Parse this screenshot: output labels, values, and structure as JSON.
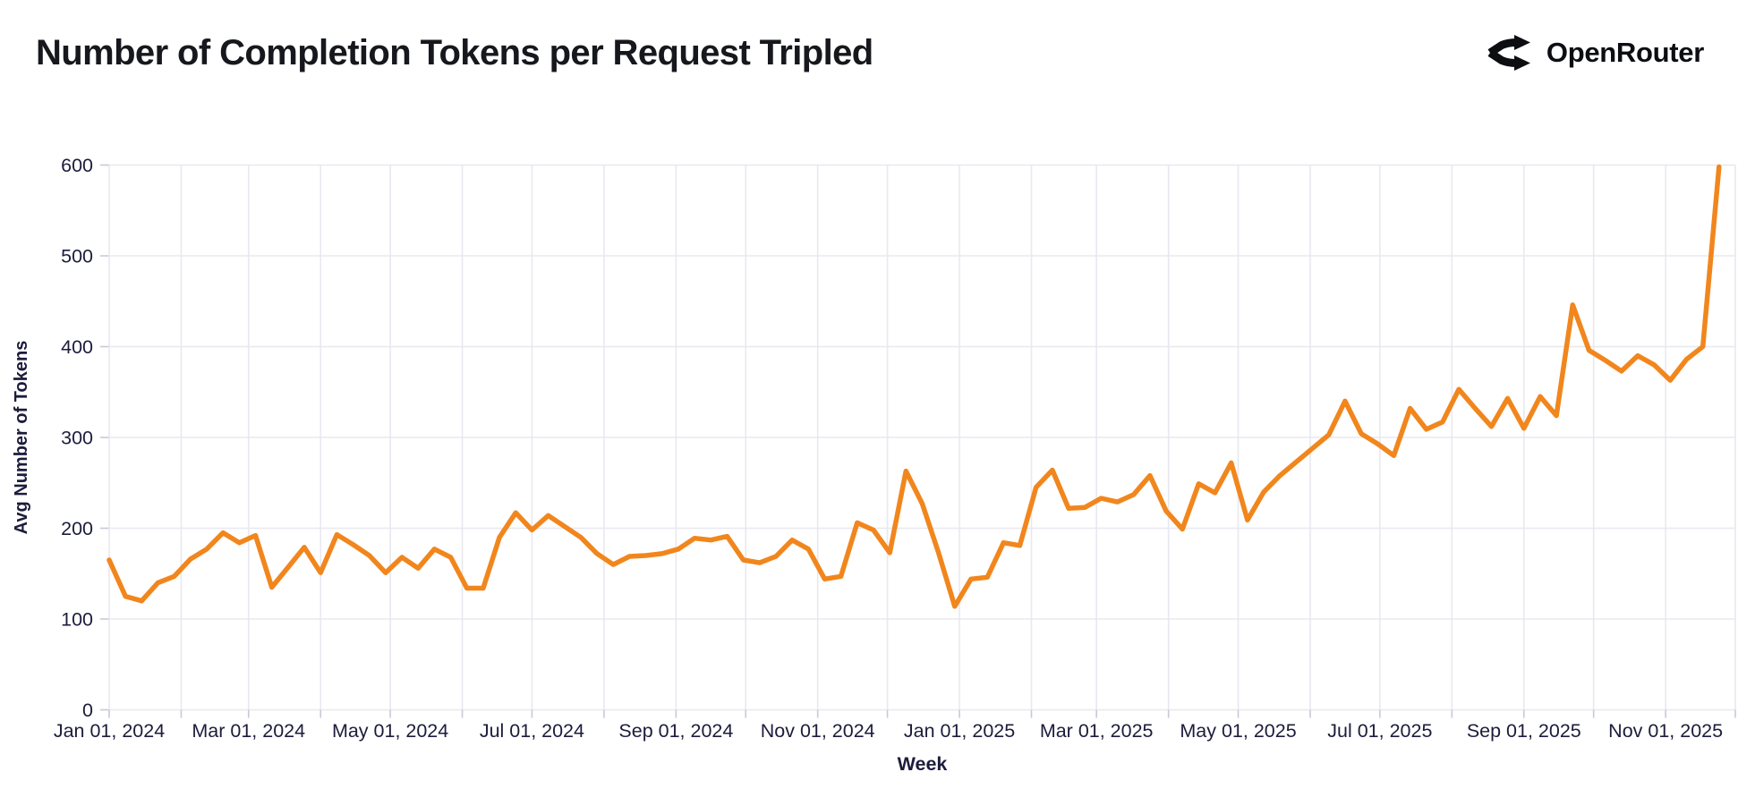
{
  "header": {
    "logo_text": "OpenRouter"
  },
  "colors": {
    "background": "#ffffff",
    "line": "#F1861D",
    "grid": "#E8E8F0",
    "tick": "#C9C9D6",
    "label": "#1C1C3C",
    "title": "#16181D"
  },
  "chart_data": {
    "type": "line",
    "title": "Number of Completion Tokens per Request Tripled",
    "xlabel": "Week",
    "ylabel": "Avg Number of Tokens",
    "x_interval": "weekly",
    "x_start_label": "Jan 01, 2024",
    "x_end_label": "Nov 01, 2025",
    "ylim": [
      0,
      600
    ],
    "grid": "on",
    "legend": "none",
    "y_ticks": [
      0,
      100,
      200,
      300,
      400,
      500,
      600
    ],
    "x_ticks": [
      {
        "label": "Jan 01, 2024",
        "day": 0
      },
      {
        "label": "Mar 01, 2024",
        "day": 60
      },
      {
        "label": "May 01, 2024",
        "day": 121
      },
      {
        "label": "Jul 01, 2024",
        "day": 182
      },
      {
        "label": "Sep 01, 2024",
        "day": 244
      },
      {
        "label": "Nov 01, 2024",
        "day": 305
      },
      {
        "label": "Jan 01, 2025",
        "day": 366
      },
      {
        "label": "Mar 01, 2025",
        "day": 425
      },
      {
        "label": "May 01, 2025",
        "day": 486
      },
      {
        "label": "Jul 01, 2025",
        "day": 547
      },
      {
        "label": "Sep 01, 2025",
        "day": 609
      },
      {
        "label": "Nov 01, 2025",
        "day": 670
      }
    ],
    "x_gridline_days": [
      0,
      31,
      60,
      91,
      121,
      152,
      182,
      213,
      244,
      274,
      305,
      335,
      366,
      397,
      425,
      456,
      486,
      517,
      547,
      578,
      609,
      639,
      670,
      700
    ],
    "x_domain_days": [
      0,
      700
    ],
    "values_are_weekly_avg_tokens": true,
    "values": [
      165,
      125,
      120,
      140,
      147,
      166,
      177,
      195,
      184,
      192,
      135,
      157,
      179,
      151,
      193,
      182,
      170,
      151,
      168,
      156,
      177,
      168,
      134,
      134,
      190,
      217,
      198,
      214,
      202,
      190,
      172,
      160,
      169,
      170,
      172,
      177,
      189,
      187,
      191,
      165,
      162,
      169,
      187,
      177,
      144,
      147,
      206,
      198,
      173,
      263,
      227,
      173,
      114,
      144,
      146,
      184,
      181,
      245,
      264,
      222,
      223,
      233,
      229,
      237,
      258,
      219,
      199,
      249,
      239,
      272,
      209,
      240,
      258,
      273,
      288,
      303,
      340,
      304,
      293,
      280,
      332,
      309,
      317,
      353,
      332,
      312,
      343,
      310,
      345,
      324,
      446,
      396,
      385,
      373,
      390,
      380,
      363,
      386,
      400,
      598
    ]
  }
}
